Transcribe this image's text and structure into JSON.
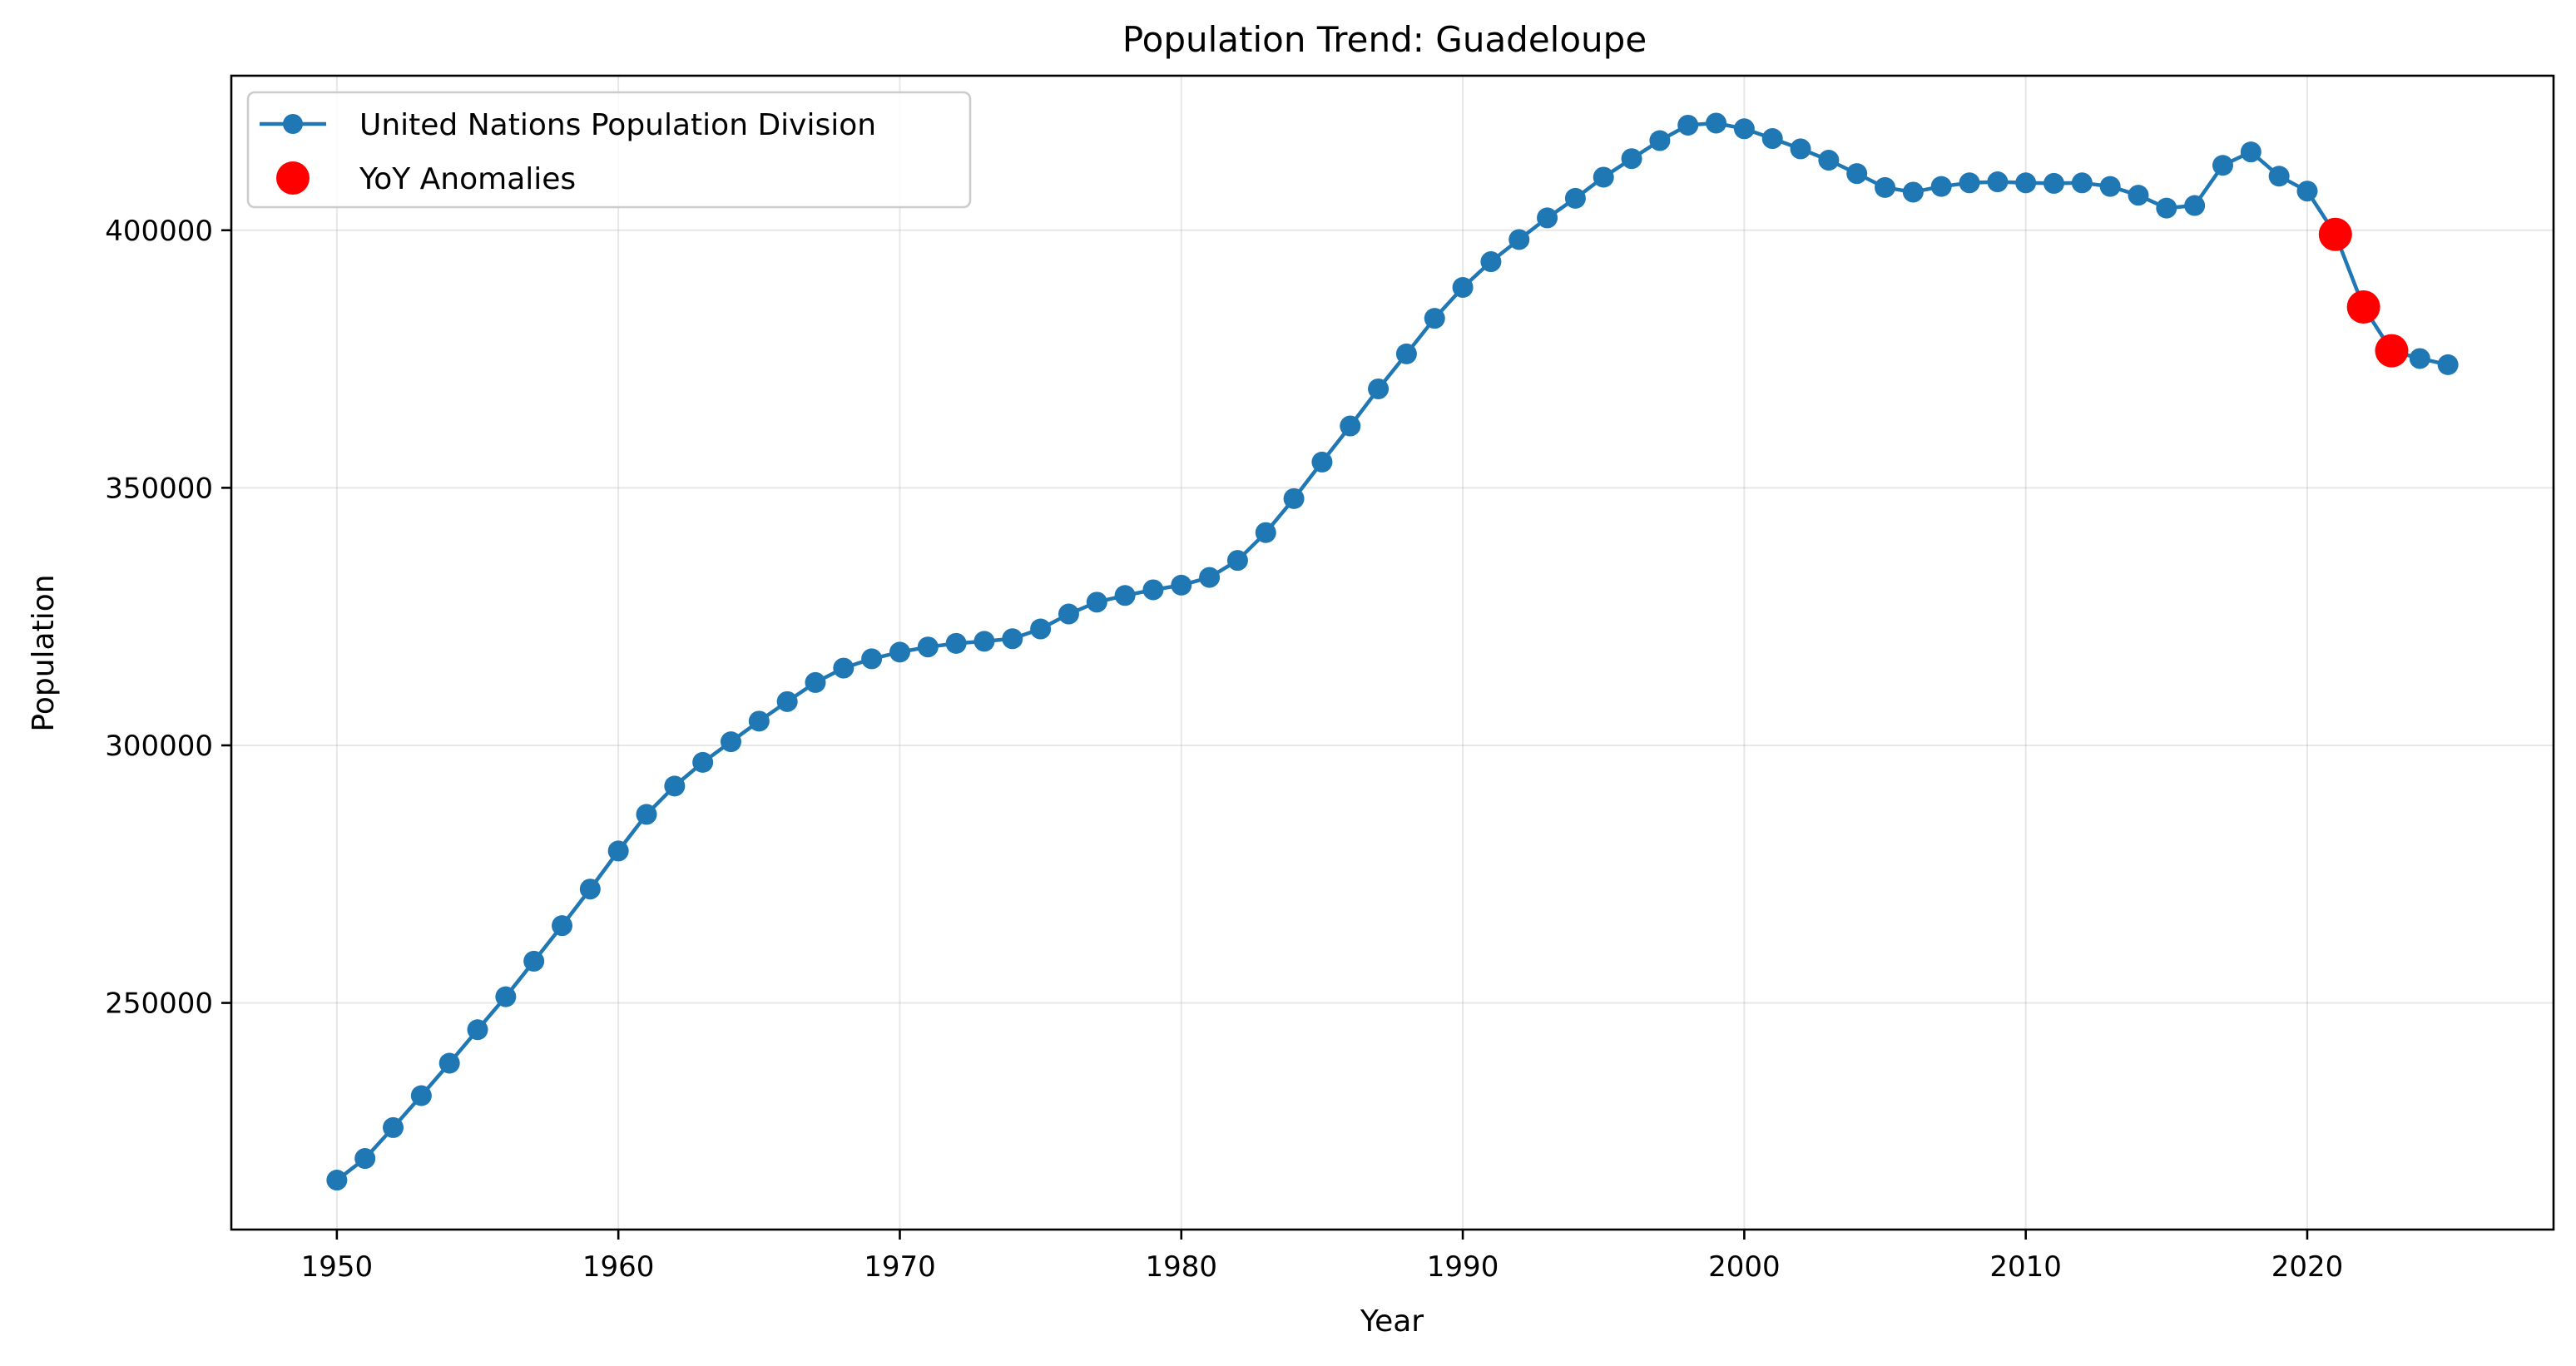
{
  "chart_data": {
    "type": "line",
    "title": "Population Trend: Guadeloupe",
    "xlabel": "Year",
    "ylabel": "Population",
    "xlim": [
      1946.25,
      2028.75
    ],
    "ylim": [
      206000,
      430000
    ],
    "x_ticks": [
      1950,
      1960,
      1970,
      1980,
      1990,
      2000,
      2010,
      2020
    ],
    "y_ticks": [
      250000,
      300000,
      350000,
      400000
    ],
    "grid": true,
    "legend_position": "top-left",
    "colors": {
      "series": "#1f77b4",
      "anomaly": "#ff0000",
      "grid": "#b0b0b0",
      "axis": "#000000"
    },
    "x": [
      1950,
      1951,
      1952,
      1953,
      1954,
      1955,
      1956,
      1957,
      1958,
      1959,
      1960,
      1961,
      1962,
      1963,
      1964,
      1965,
      1966,
      1967,
      1968,
      1969,
      1970,
      1971,
      1972,
      1973,
      1974,
      1975,
      1976,
      1977,
      1978,
      1979,
      1980,
      1981,
      1982,
      1983,
      1984,
      1985,
      1986,
      1987,
      1988,
      1989,
      1990,
      1991,
      1992,
      1993,
      1994,
      1995,
      1996,
      1997,
      1998,
      1999,
      2000,
      2001,
      2002,
      2003,
      2004,
      2005,
      2006,
      2007,
      2008,
      2009,
      2010,
      2011,
      2012,
      2013,
      2014,
      2015,
      2016,
      2017,
      2018,
      2019,
      2020,
      2021,
      2022,
      2023,
      2024,
      2025
    ],
    "series": [
      {
        "name": "United Nations Population Division",
        "values": [
          215600,
          219800,
          225800,
          232000,
          238300,
          244800,
          251200,
          258100,
          265000,
          272100,
          279500,
          286600,
          292100,
          296700,
          300700,
          304700,
          308500,
          312200,
          315000,
          316800,
          318100,
          319100,
          319800,
          320200,
          320700,
          322600,
          325500,
          327800,
          329100,
          330200,
          331100,
          332600,
          335900,
          341300,
          347900,
          355000,
          362000,
          369200,
          376000,
          382900,
          388900,
          393900,
          398200,
          402400,
          406200,
          410300,
          413900,
          417400,
          420400,
          420800,
          419700,
          417800,
          415800,
          413600,
          411000,
          408300,
          407400,
          408500,
          409200,
          409400,
          409200,
          409100,
          409200,
          408500,
          406800,
          404300,
          404800,
          412600,
          415200,
          410500,
          407600,
          399200,
          385100,
          376600,
          375100,
          373900
        ],
        "style": "line-with-markers"
      },
      {
        "name": "YoY Anomalies",
        "x": [
          2021,
          2022,
          2023
        ],
        "values": [
          399200,
          385100,
          376600
        ],
        "style": "scatter"
      }
    ]
  }
}
